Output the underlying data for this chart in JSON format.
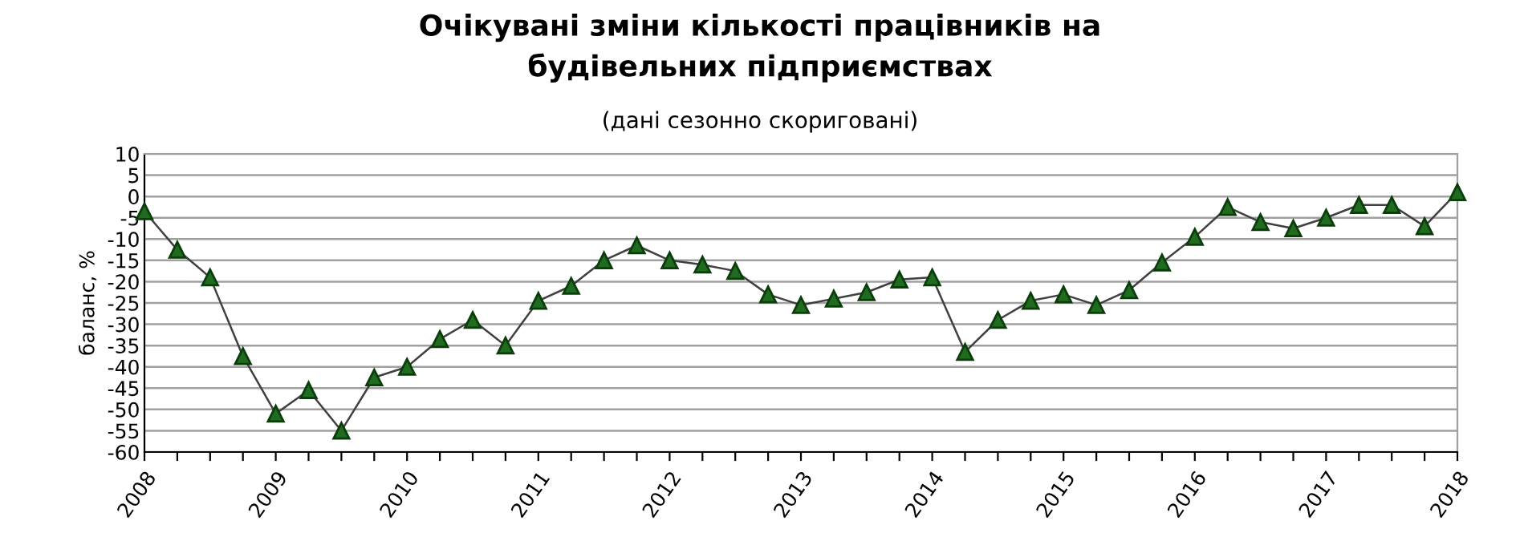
{
  "chart_data": {
    "type": "line",
    "title": "Очікувані зміни кількості працівників на\nбудівельних підприємствах",
    "subtitle": "(дані сезонно скориговані)",
    "ylabel": "баланс, %",
    "x": [
      2008,
      2008.25,
      2008.5,
      2008.75,
      2009,
      2009.25,
      2009.5,
      2009.75,
      2010,
      2010.25,
      2010.5,
      2010.75,
      2011,
      2011.25,
      2011.5,
      2011.75,
      2012,
      2012.25,
      2012.5,
      2012.75,
      2013,
      2013.25,
      2013.5,
      2013.75,
      2014,
      2014.25,
      2014.5,
      2014.75,
      2015,
      2015.25,
      2015.5,
      2015.75,
      2016,
      2016.25,
      2016.5,
      2016.75,
      2017,
      2017.25,
      2017.5,
      2017.75,
      2018
    ],
    "series": [
      {
        "color": "#1f6b1f",
        "values": [
          -3.5,
          -12.5,
          -19,
          -37.5,
          -51,
          -45.5,
          -55,
          -42.5,
          -40,
          -33.5,
          -29,
          -35,
          -24.5,
          -21,
          -15,
          -11.5,
          -15,
          -16,
          -17.5,
          -23,
          -25.5,
          -24,
          -22.5,
          -19.5,
          -19,
          -36.5,
          -29,
          -24.5,
          -23,
          -25.5,
          -22,
          -15.5,
          -9.5,
          -2.5,
          -6,
          -7.5,
          -5,
          -2,
          -2,
          -7,
          1
        ]
      }
    ],
    "xlim": [
      2008,
      2018
    ],
    "xticks": [
      2008,
      {
        "value": 2008.25,
        "label": null
      },
      {
        "value": 2008.5,
        "label": null
      },
      {
        "value": 2008.75,
        "label": null
      },
      2009,
      {
        "value": 2009.25,
        "label": null
      },
      {
        "value": 2009.5,
        "label": null
      },
      {
        "value": 2009.75,
        "label": null
      },
      2010,
      {
        "value": 2010.25,
        "label": null
      },
      {
        "value": 2010.5,
        "label": null
      },
      {
        "value": 2010.75,
        "label": null
      },
      2011,
      {
        "value": 2011.25,
        "label": null
      },
      {
        "value": 2011.5,
        "label": null
      },
      {
        "value": 2011.75,
        "label": null
      },
      2012,
      {
        "value": 2012.25,
        "label": null
      },
      {
        "value": 2012.5,
        "label": null
      },
      {
        "value": 2012.75,
        "label": null
      },
      2013,
      {
        "value": 2013.25,
        "label": null
      },
      {
        "value": 2013.5,
        "label": null
      },
      {
        "value": 2013.75,
        "label": null
      },
      2014,
      {
        "value": 2014.25,
        "label": null
      },
      {
        "value": 2014.5,
        "label": null
      },
      {
        "value": 2014.75,
        "label": null
      },
      2015,
      {
        "value": 2015.25,
        "label": null
      },
      {
        "value": 2015.5,
        "label": null
      },
      {
        "value": 2015.75,
        "label": null
      },
      2016,
      {
        "value": 2016.25,
        "label": null
      },
      {
        "value": 2016.5,
        "label": null
      },
      {
        "value": 2016.75,
        "label": null
      },
      2017,
      {
        "value": 2017.25,
        "label": null
      },
      {
        "value": 2017.5,
        "label": null
      },
      {
        "value": 2017.75,
        "label": null
      },
      2018
    ],
    "ylim": [
      -60,
      10
    ],
    "yticks": [
      -60,
      -55,
      -50,
      -45,
      -40,
      -35,
      -30,
      -25,
      -20,
      -15,
      -10,
      -5,
      0,
      5,
      10
    ],
    "grid": "y",
    "marker": "triangle",
    "line_style": "solid"
  }
}
